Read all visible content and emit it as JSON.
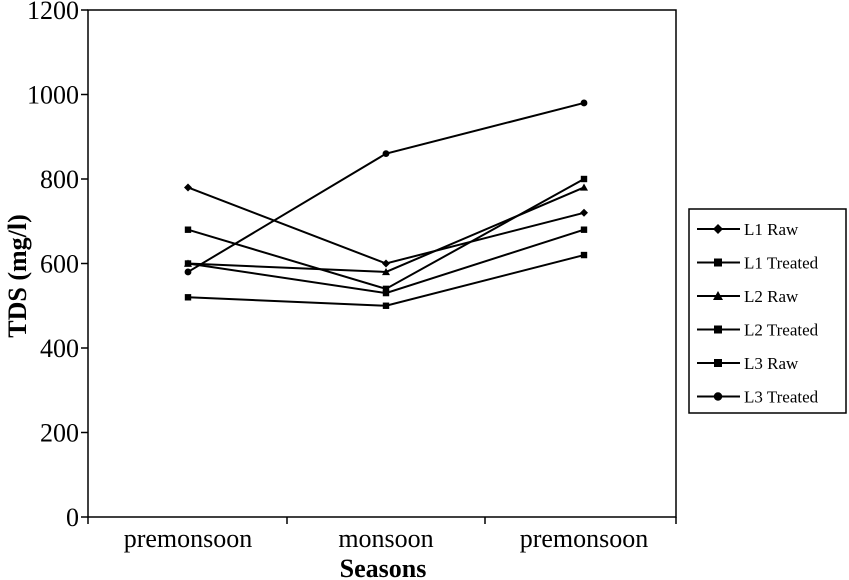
{
  "chart_data": {
    "type": "line",
    "categories": [
      "premonsoon",
      "monsoon",
      "premonsoon"
    ],
    "xlabel": "Seasons",
    "ylabel": "TDS (mg/l)",
    "ylim": [
      0,
      1200
    ],
    "yticks": [
      0,
      200,
      400,
      600,
      800,
      1000,
      1200
    ],
    "grid": false,
    "legend_position": "right",
    "series": [
      {
        "name": "L1 Raw",
        "marker": "diamond",
        "values": [
          780,
          600,
          720
        ]
      },
      {
        "name": "L1 Treated",
        "marker": "square",
        "values": [
          520,
          500,
          620
        ]
      },
      {
        "name": "L2 Raw",
        "marker": "triangle",
        "values": [
          600,
          580,
          780
        ]
      },
      {
        "name": "L2 Treated",
        "marker": "square",
        "values": [
          600,
          530,
          680
        ]
      },
      {
        "name": "L3 Raw",
        "marker": "square",
        "values": [
          680,
          540,
          800
        ]
      },
      {
        "name": "L3 Treated",
        "marker": "circle",
        "values": [
          580,
          860,
          980
        ]
      }
    ]
  }
}
